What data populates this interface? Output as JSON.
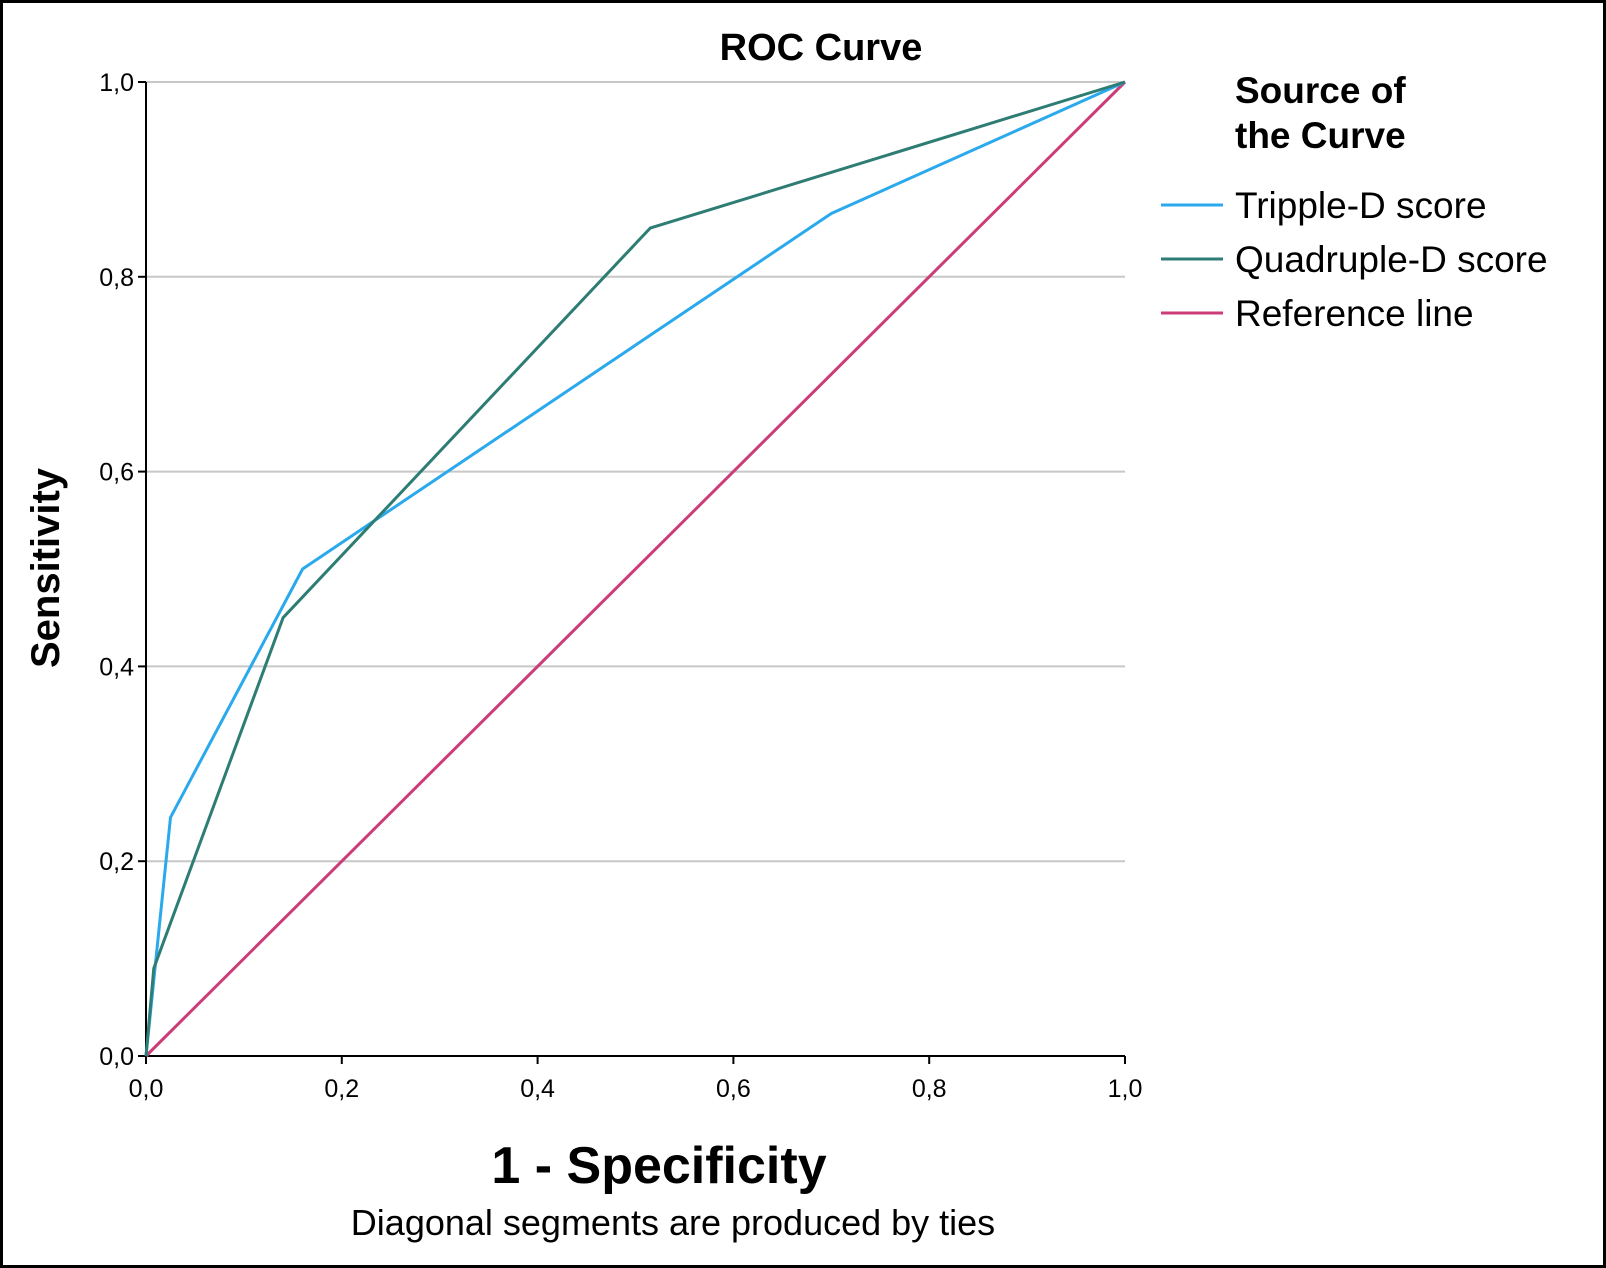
{
  "chart_data": {
    "type": "line",
    "title": "ROC Curve",
    "xlabel": "1 - Specificity",
    "ylabel": "Sensitivity",
    "note": "Diagonal segments are produced by ties",
    "xlim": [
      0,
      1
    ],
    "ylim": [
      0,
      1
    ],
    "x_ticks": [
      "0,0",
      "0,2",
      "0,4",
      "0,6",
      "0,8",
      "1,0"
    ],
    "y_ticks": [
      "0,0",
      "0,2",
      "0,4",
      "0,6",
      "0,8",
      "1,0"
    ],
    "grid": "horizontal",
    "legend": {
      "title_lines": [
        "Source of",
        "the Curve"
      ],
      "placement": "right"
    },
    "series": [
      {
        "name": "Tripple-D score",
        "color": "#2aa9ec",
        "points": [
          [
            0.0,
            0.0
          ],
          [
            0.025,
            0.245
          ],
          [
            0.16,
            0.5
          ],
          [
            0.7,
            0.865
          ],
          [
            1.0,
            1.0
          ]
        ]
      },
      {
        "name": "Quadruple-D score",
        "color": "#2e7d74",
        "points": [
          [
            0.0,
            0.0
          ],
          [
            0.008,
            0.09
          ],
          [
            0.14,
            0.45
          ],
          [
            0.515,
            0.85
          ],
          [
            1.0,
            1.0
          ]
        ]
      },
      {
        "name": "Reference line",
        "color": "#cc3d78",
        "points": [
          [
            0.0,
            0.0
          ],
          [
            1.0,
            1.0
          ]
        ]
      }
    ]
  }
}
